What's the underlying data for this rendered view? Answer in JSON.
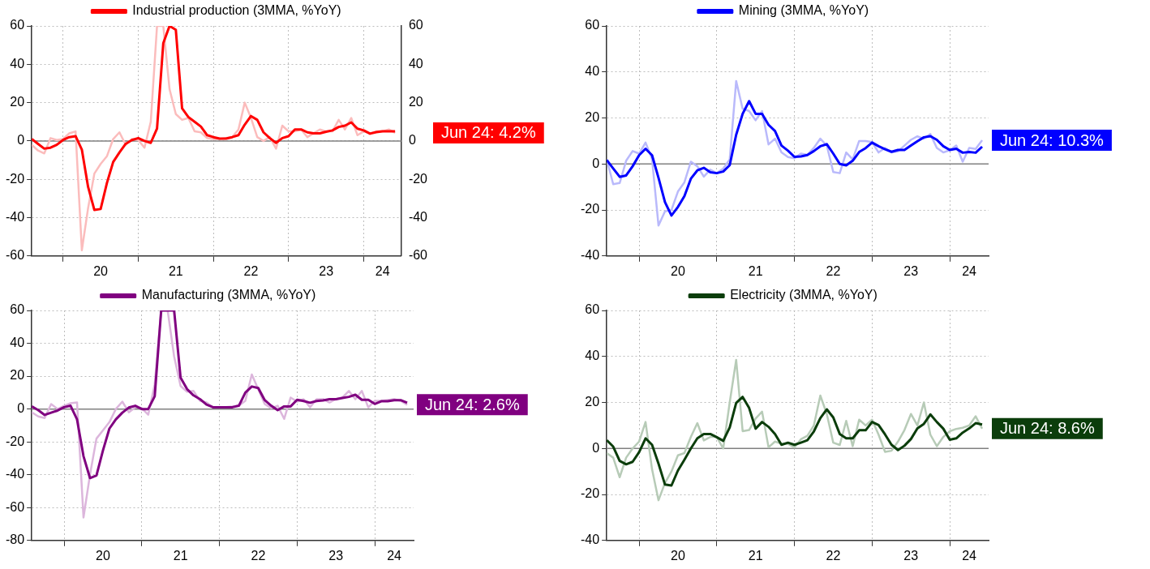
{
  "chart_data": [
    {
      "type": "line",
      "x": [
        "2019-08",
        "2019-09",
        "2019-10",
        "2019-11",
        "2019-12",
        "2020-01",
        "2020-02",
        "2020-03",
        "2020-04",
        "2020-05",
        "2020-06",
        "2020-07",
        "2020-08",
        "2020-09",
        "2020-10",
        "2020-11",
        "2020-12",
        "2021-01",
        "2021-02",
        "2021-03",
        "2021-04",
        "2021-05",
        "2021-06",
        "2021-07",
        "2021-08",
        "2021-09",
        "2021-10",
        "2021-11",
        "2021-12",
        "2022-01",
        "2022-02",
        "2022-03",
        "2022-04",
        "2022-05",
        "2022-06",
        "2022-07",
        "2022-08",
        "2022-09",
        "2022-10",
        "2022-11",
        "2022-12",
        "2023-01",
        "2023-02",
        "2023-03",
        "2023-04",
        "2023-05",
        "2023-06",
        "2023-07",
        "2023-08",
        "2023-09",
        "2023-10",
        "2023-11",
        "2023-12",
        "2024-01",
        "2024-02",
        "2024-03",
        "2024-04",
        "2024-05",
        "2024-06"
      ],
      "series": [
        {
          "color": "#fbbcbc",
          "values": [
            -2,
            -5,
            -6.5,
            1.5,
            0.5,
            1,
            4,
            5,
            -57,
            -35,
            -17,
            -12,
            -8,
            1,
            4.5,
            -2,
            1,
            0.5,
            -3.5,
            10,
            60,
            60,
            27,
            14,
            11,
            12,
            5,
            4.5,
            1.5,
            1,
            1,
            1.5,
            2,
            6,
            20,
            12,
            2,
            0,
            2,
            -4,
            8,
            5,
            5,
            6,
            2,
            4,
            6,
            5,
            5,
            11,
            6,
            12,
            3,
            5,
            4,
            5,
            5,
            6,
            4.2
          ]
        },
        {
          "name": "Industrial production (3MMA, %YoY)",
          "color": "#ff0000",
          "values": [
            1,
            -1.5,
            -4,
            -3.5,
            -2,
            0.5,
            2,
            2.5,
            -4.5,
            -24,
            -36,
            -35.5,
            -22,
            -11,
            -6,
            -1.5,
            0.5,
            1.5,
            0,
            -1,
            6.5,
            51,
            60,
            58,
            17,
            12.5,
            10,
            7.5,
            3,
            2,
            1.2,
            1.2,
            2,
            3,
            8.5,
            13,
            11,
            4.5,
            1.5,
            -1,
            1.5,
            2.5,
            6,
            6,
            4.5,
            4,
            4,
            4.8,
            5.5,
            7.3,
            8,
            9.7,
            6.4,
            5.5,
            3.8,
            4.6,
            5,
            5,
            5
          ]
        }
      ],
      "xlim": [
        "2019-08",
        "2024-07"
      ],
      "xticks": [
        {
          "value": "2020-01",
          "label": null
        },
        {
          "value": "2020-07",
          "label": "20"
        },
        {
          "value": "2021-01",
          "label": null
        },
        {
          "value": "2021-07",
          "label": "21"
        },
        {
          "value": "2022-01",
          "label": null
        },
        {
          "value": "2022-07",
          "label": "22"
        },
        {
          "value": "2023-01",
          "label": null
        },
        {
          "value": "2023-07",
          "label": "23"
        },
        {
          "value": "2024-01",
          "label": null
        },
        {
          "value": "2024-04",
          "label": "24"
        }
      ],
      "ylim": [
        -60,
        60
      ],
      "yticks": [
        -60,
        -40,
        -20,
        0,
        20,
        40,
        60
      ],
      "y2lim": [
        -60,
        60
      ],
      "y2ticks": [
        -60,
        -40,
        -20,
        0,
        20,
        40,
        60
      ],
      "ref_lines": [
        {
          "axis": "y",
          "value": 0,
          "color": "#808080"
        }
      ],
      "annotations": [
        {
          "text": "Jun 24: 4.2%",
          "x": "2024-06",
          "y": 4.2
        }
      ],
      "grid": true,
      "legend": "top",
      "marker": "none"
    },
    {
      "type": "line",
      "x": [
        "2019-08",
        "2019-09",
        "2019-10",
        "2019-11",
        "2019-12",
        "2020-01",
        "2020-02",
        "2020-03",
        "2020-04",
        "2020-05",
        "2020-06",
        "2020-07",
        "2020-08",
        "2020-09",
        "2020-10",
        "2020-11",
        "2020-12",
        "2021-01",
        "2021-02",
        "2021-03",
        "2021-04",
        "2021-05",
        "2021-06",
        "2021-07",
        "2021-08",
        "2021-09",
        "2021-10",
        "2021-11",
        "2021-12",
        "2022-01",
        "2022-02",
        "2022-03",
        "2022-04",
        "2022-05",
        "2022-06",
        "2022-07",
        "2022-08",
        "2022-09",
        "2022-10",
        "2022-11",
        "2022-12",
        "2023-01",
        "2023-02",
        "2023-03",
        "2023-04",
        "2023-05",
        "2023-06",
        "2023-07",
        "2023-08",
        "2023-09",
        "2023-10",
        "2023-11",
        "2023-12",
        "2024-01",
        "2024-02",
        "2024-03",
        "2024-04",
        "2024-05",
        "2024-06"
      ],
      "series": [
        {
          "color": "#b9b9fb",
          "values": [
            2,
            -8.8,
            -8.3,
            1.4,
            5.6,
            4.5,
            9.3,
            2.2,
            -26.8,
            -20.6,
            -20,
            -12,
            -8,
            1,
            -1,
            -5.5,
            -2.5,
            -4,
            -2,
            2,
            36,
            24,
            23,
            19,
            23,
            8.5,
            11,
            5,
            3,
            2.5,
            4.5,
            4,
            7,
            11,
            8,
            -3.5,
            -4,
            5,
            2,
            10,
            10,
            9.5,
            5,
            7,
            5,
            5.5,
            8,
            10.5,
            12,
            11,
            13,
            7,
            5,
            6,
            8,
            1,
            7,
            6.5,
            10.3
          ]
        },
        {
          "name": "Mining (3MMA, %YoY)",
          "color": "#0000ff",
          "values": [
            1.7,
            -2,
            -5.6,
            -5,
            -1,
            3.8,
            6.6,
            3.8,
            -6,
            -16.6,
            -22.4,
            -18.7,
            -14,
            -6.4,
            -2.8,
            -1.7,
            -3.6,
            -4,
            -3.3,
            -0.5,
            12.7,
            21.8,
            27.3,
            21.8,
            21.8,
            17,
            14.3,
            8,
            5.8,
            3.1,
            3.3,
            3.9,
            5.6,
            7.7,
            8.6,
            4.5,
            0,
            -0.6,
            1.4,
            5.2,
            6.9,
            9.3,
            7.7,
            6.4,
            5.3,
            6.1,
            6.1,
            8,
            9.9,
            11.6,
            12.1,
            10.5,
            7.7,
            6.1,
            6.6,
            4.9,
            5.2,
            4.9,
            7.5
          ]
        }
      ],
      "xlim": [
        "2019-08",
        "2024-07"
      ],
      "xticks": [
        {
          "value": "2020-01",
          "label": null
        },
        {
          "value": "2020-07",
          "label": "20"
        },
        {
          "value": "2021-01",
          "label": null
        },
        {
          "value": "2021-07",
          "label": "21"
        },
        {
          "value": "2022-01",
          "label": null
        },
        {
          "value": "2022-07",
          "label": "22"
        },
        {
          "value": "2023-01",
          "label": null
        },
        {
          "value": "2023-07",
          "label": "23"
        },
        {
          "value": "2024-01",
          "label": null
        },
        {
          "value": "2024-04",
          "label": "24"
        }
      ],
      "ylim": [
        -40,
        60
      ],
      "yticks": [
        -40,
        -20,
        0,
        20,
        40,
        60
      ],
      "ref_lines": [
        {
          "axis": "y",
          "value": 0,
          "color": "#808080"
        }
      ],
      "annotations": [
        {
          "text": "Jun 24: 10.3%",
          "x": "2024-06",
          "y": 10.3
        }
      ],
      "grid": true,
      "legend": "top",
      "marker": "none"
    },
    {
      "type": "line",
      "x": [
        "2019-08",
        "2019-09",
        "2019-10",
        "2019-11",
        "2019-12",
        "2020-01",
        "2020-02",
        "2020-03",
        "2020-04",
        "2020-05",
        "2020-06",
        "2020-07",
        "2020-08",
        "2020-09",
        "2020-10",
        "2020-11",
        "2020-12",
        "2021-01",
        "2021-02",
        "2021-03",
        "2021-04",
        "2021-05",
        "2021-06",
        "2021-07",
        "2021-08",
        "2021-09",
        "2021-10",
        "2021-11",
        "2021-12",
        "2022-01",
        "2022-02",
        "2022-03",
        "2022-04",
        "2022-05",
        "2022-06",
        "2022-07",
        "2022-08",
        "2022-09",
        "2022-10",
        "2022-11",
        "2022-12",
        "2023-01",
        "2023-02",
        "2023-03",
        "2023-04",
        "2023-05",
        "2023-06",
        "2023-07",
        "2023-08",
        "2023-09",
        "2023-10",
        "2023-11",
        "2023-12",
        "2024-01",
        "2024-02",
        "2024-03",
        "2024-04",
        "2024-05",
        "2024-06"
      ],
      "series": [
        {
          "color": "#dcb6dc",
          "values": [
            -2,
            -4.5,
            -5.5,
            3,
            0,
            2,
            3.5,
            4,
            -66,
            -40,
            -18,
            -13,
            -8,
            0,
            4.5,
            -2,
            1,
            0.5,
            -3.5,
            15,
            60,
            60,
            32,
            14,
            10.5,
            11,
            5,
            4,
            1,
            1,
            1.2,
            1.5,
            2,
            5,
            21,
            12,
            3,
            0.5,
            2,
            -6,
            7,
            4.5,
            6,
            1,
            6,
            6,
            4,
            6,
            7,
            11,
            6,
            11,
            1,
            5,
            5,
            5.5,
            6,
            5,
            2.6
          ]
        },
        {
          "name": "Manufacturing (3MMA, %YoY)",
          "color": "#800080",
          "values": [
            1.6,
            -0.7,
            -3.6,
            -2.2,
            -0.9,
            1.1,
            2,
            -6.3,
            -28.7,
            -42,
            -40.4,
            -25.3,
            -11.9,
            -6.3,
            -2.2,
            0.9,
            2,
            0,
            0,
            7.8,
            60,
            60,
            60,
            19,
            12.1,
            8.3,
            6,
            2.7,
            1.1,
            1.1,
            1.1,
            1.1,
            2,
            10,
            13.7,
            12.8,
            5.4,
            2,
            -0.7,
            1.6,
            1.6,
            5.6,
            4.9,
            3.8,
            4.9,
            5.2,
            6,
            6,
            6.7,
            7.4,
            8.7,
            5.6,
            5.6,
            3.1,
            4.7,
            4.7,
            5.4,
            5.4,
            3.8
          ]
        }
      ],
      "xlim": [
        "2019-08",
        "2024-07"
      ],
      "xticks": [
        {
          "value": "2020-01",
          "label": null
        },
        {
          "value": "2020-07",
          "label": "20"
        },
        {
          "value": "2021-01",
          "label": null
        },
        {
          "value": "2021-07",
          "label": "21"
        },
        {
          "value": "2022-01",
          "label": null
        },
        {
          "value": "2022-07",
          "label": "22"
        },
        {
          "value": "2023-01",
          "label": null
        },
        {
          "value": "2023-07",
          "label": "23"
        },
        {
          "value": "2024-01",
          "label": null
        },
        {
          "value": "2024-04",
          "label": "24"
        }
      ],
      "ylim": [
        -80,
        60
      ],
      "yticks": [
        -80,
        -60,
        -40,
        -20,
        0,
        20,
        40,
        60
      ],
      "ref_lines": [
        {
          "axis": "y",
          "value": 0,
          "color": "#808080"
        }
      ],
      "annotations": [
        {
          "text": "Jun 24: 2.6%",
          "x": "2024-06",
          "y": 2.6
        }
      ],
      "grid": true,
      "legend": "top",
      "marker": "none"
    },
    {
      "type": "line",
      "x": [
        "2019-08",
        "2019-09",
        "2019-10",
        "2019-11",
        "2019-12",
        "2020-01",
        "2020-02",
        "2020-03",
        "2020-04",
        "2020-05",
        "2020-06",
        "2020-07",
        "2020-08",
        "2020-09",
        "2020-10",
        "2020-11",
        "2020-12",
        "2021-01",
        "2021-02",
        "2021-03",
        "2021-04",
        "2021-05",
        "2021-06",
        "2021-07",
        "2021-08",
        "2021-09",
        "2021-10",
        "2021-11",
        "2021-12",
        "2022-01",
        "2022-02",
        "2022-03",
        "2022-04",
        "2022-05",
        "2022-06",
        "2022-07",
        "2022-08",
        "2022-09",
        "2022-10",
        "2022-11",
        "2022-12",
        "2023-01",
        "2023-02",
        "2023-03",
        "2023-04",
        "2023-05",
        "2023-06",
        "2023-07",
        "2023-08",
        "2023-09",
        "2023-10",
        "2023-11",
        "2023-12",
        "2024-01",
        "2024-02",
        "2024-03",
        "2024-04",
        "2024-05",
        "2024-06"
      ],
      "series": [
        {
          "color": "#b7cbb7",
          "values": [
            -2,
            -4,
            -12.5,
            -4,
            0,
            3,
            11.5,
            -9,
            -22.5,
            -15,
            -10,
            -3,
            -2,
            5,
            11,
            3.5,
            5,
            5,
            0,
            20,
            38.5,
            7.5,
            8,
            13,
            16,
            0.5,
            3,
            2,
            2,
            0.5,
            4,
            5.5,
            10,
            23,
            15,
            2.5,
            1.5,
            12,
            1,
            12.5,
            10,
            12.5,
            6,
            -1.5,
            -1,
            3,
            8,
            15,
            10,
            20,
            6,
            1,
            5,
            7.5,
            8.5,
            9,
            10,
            14,
            8.6
          ]
        },
        {
          "name": "Electricity (3MMA, %YoY)",
          "color": "#0b3d0b",
          "values": [
            3.6,
            0.8,
            -5.4,
            -6.9,
            -5.8,
            -1.6,
            4.4,
            1.6,
            -6.6,
            -15.7,
            -16.1,
            -9.6,
            -4.9,
            0,
            4.4,
            6.3,
            6.3,
            4.9,
            3.3,
            9.1,
            19.8,
            22.4,
            17.6,
            8.6,
            11.5,
            9.4,
            6.3,
            1.6,
            2.5,
            1.6,
            2.5,
            3.6,
            7.4,
            13.2,
            17,
            13.5,
            6.3,
            4.4,
            4.4,
            7.9,
            7.9,
            11.5,
            10.2,
            6.1,
            1.6,
            -0.7,
            1.2,
            4.1,
            8.7,
            10.7,
            14.8,
            11.5,
            8.6,
            3.8,
            4.4,
            6.9,
            8.7,
            11,
            10.4
          ]
        }
      ],
      "xlim": [
        "2019-08",
        "2024-07"
      ],
      "xticks": [
        {
          "value": "2020-01",
          "label": null
        },
        {
          "value": "2020-07",
          "label": "20"
        },
        {
          "value": "2021-01",
          "label": null
        },
        {
          "value": "2021-07",
          "label": "21"
        },
        {
          "value": "2022-01",
          "label": null
        },
        {
          "value": "2022-07",
          "label": "22"
        },
        {
          "value": "2023-01",
          "label": null
        },
        {
          "value": "2023-07",
          "label": "23"
        },
        {
          "value": "2024-01",
          "label": null
        },
        {
          "value": "2024-04",
          "label": "24"
        }
      ],
      "ylim": [
        -40,
        60
      ],
      "yticks": [
        -40,
        -20,
        0,
        20,
        40,
        60
      ],
      "ref_lines": [
        {
          "axis": "y",
          "value": 0,
          "color": "#808080"
        }
      ],
      "annotations": [
        {
          "text": "Jun 24: 8.6%",
          "x": "2024-06",
          "y": 8.6
        }
      ],
      "grid": true,
      "legend": "top",
      "marker": "none"
    }
  ]
}
